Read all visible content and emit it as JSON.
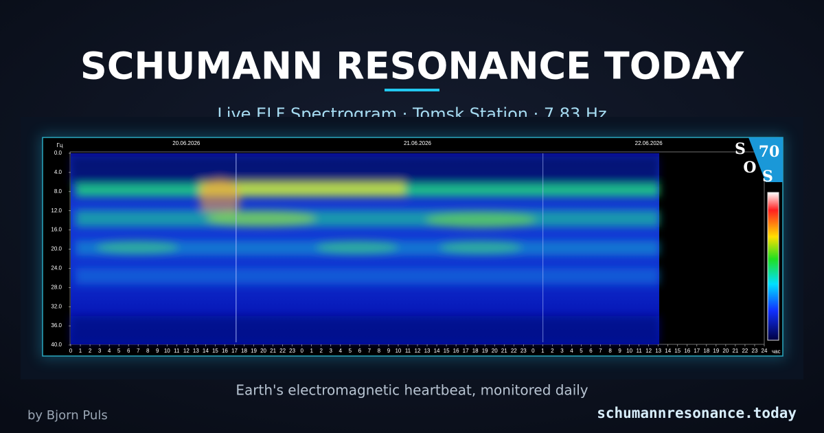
{
  "header": {
    "title": "SCHUMANN RESONANCE TODAY",
    "subtitle": "Live ELF Spectrogram · Tomsk Station · 7.83 Hz"
  },
  "spectrogram": {
    "y_unit": "Гц",
    "x_unit": "час",
    "y_ticks": [
      "0.0",
      "4.0",
      "8.0",
      "12.0",
      "16.0",
      "20.0",
      "24.0",
      "28.0",
      "32.0",
      "36.0",
      "40.0"
    ],
    "dates": [
      "20.06.2026",
      "21.06.2026",
      "22.06.2026"
    ],
    "hours": [
      0,
      1,
      2,
      3,
      4,
      5,
      6,
      7,
      8,
      9,
      10,
      11,
      12,
      13,
      14,
      15,
      16,
      17,
      18,
      19,
      20,
      21,
      22,
      23,
      0,
      1,
      2,
      3,
      4,
      5,
      6,
      7,
      8,
      9,
      10,
      11,
      12,
      13,
      14,
      15,
      16,
      17,
      18,
      19,
      20,
      21,
      22,
      23,
      0,
      1,
      2,
      3,
      4,
      5,
      6,
      7,
      8,
      9,
      10,
      11,
      12,
      13,
      14,
      15,
      16,
      17,
      18,
      19,
      20,
      21,
      22,
      23,
      24
    ],
    "logo": {
      "letters": [
        "S",
        "O",
        "S"
      ],
      "number": "70"
    }
  },
  "footer": {
    "caption": "Earth's electromagnetic heartbeat, monitored daily",
    "author": "by Bjorn Puls",
    "url": "schumannresonance.today"
  }
}
